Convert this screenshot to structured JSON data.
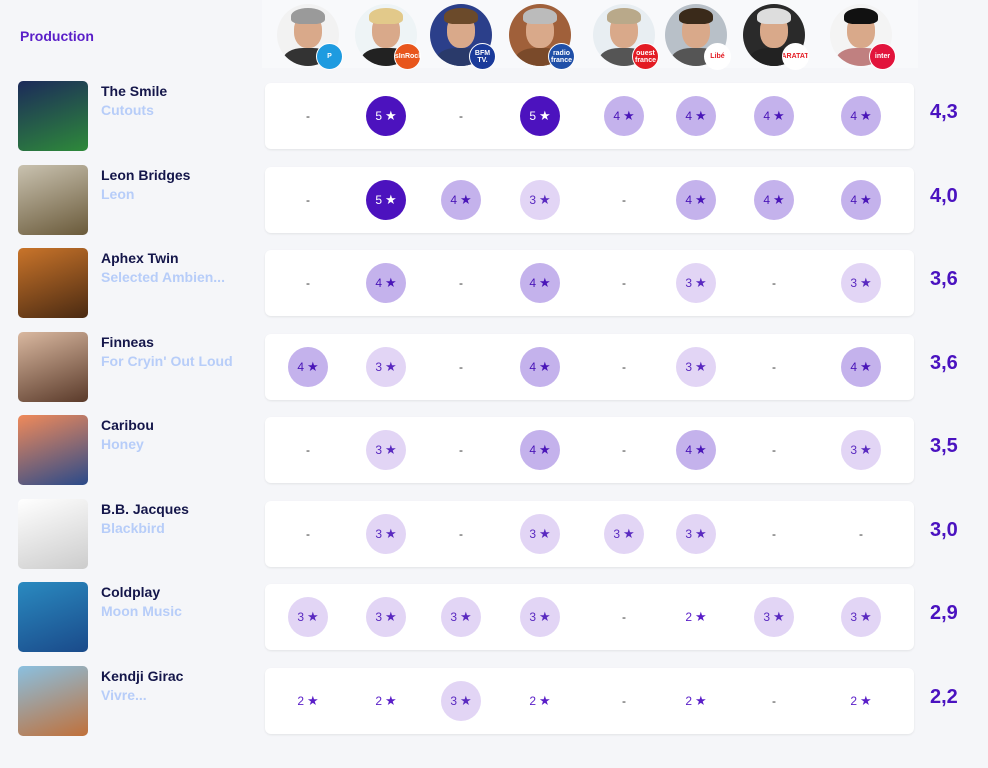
{
  "header": {
    "title": "Production"
  },
  "critics": [
    {
      "name": "critic-1",
      "badge": "P",
      "badge_color": "#1e9be0",
      "hair": "#9a9a9a",
      "body": "#333333",
      "bg": "#f2f2f2"
    },
    {
      "name": "critic-2",
      "badge": "lesInRocks",
      "badge_color": "#e8561c",
      "hair": "#e2c98a",
      "body": "#222222",
      "bg": "#eef4f6"
    },
    {
      "name": "critic-3",
      "badge": "BFM TV.",
      "badge_color": "#1a3a9a",
      "hair": "#6b4a2a",
      "body": "#2a3a6a",
      "bg": "#2b3f8a"
    },
    {
      "name": "critic-4",
      "badge": "radio france",
      "badge_color": "#1f4fa8",
      "hair": "#bbbbbb",
      "body": "#7a4a2a",
      "bg": "#a0603a"
    },
    {
      "name": "critic-5",
      "badge": "ouest france",
      "badge_color": "#e31b23",
      "hair": "#b9a98a",
      "body": "#555555",
      "bg": "#e8eef2"
    },
    {
      "name": "critic-6",
      "badge": "Libé",
      "badge_color": "#ffffff",
      "hair": "#3a2a1a",
      "body": "#555555",
      "bg": "#b8c0c8"
    },
    {
      "name": "critic-7",
      "badge": "TARATATA",
      "badge_color": "#ffffff",
      "hair": "#dddddd",
      "body": "#222222",
      "bg": "#2a2a2a"
    },
    {
      "name": "critic-8",
      "badge": "inter",
      "badge_color": "#e2143c",
      "hair": "#111111",
      "body": "#c08080",
      "bg": "#f4f4f4"
    }
  ],
  "rows": [
    {
      "artist": "The Smile",
      "album": "Cutouts",
      "ratings": [
        "-",
        "5",
        "-",
        "5",
        "4",
        "4",
        "4",
        "4"
      ],
      "score": "4,3",
      "cover": [
        "#1c2a5a",
        "#2e8a3a"
      ]
    },
    {
      "artist": "Leon Bridges",
      "album": "Leon",
      "ratings": [
        "-",
        "5",
        "4",
        "3",
        "-",
        "4",
        "4",
        "4"
      ],
      "score": "4,0",
      "cover": [
        "#c9c2b0",
        "#6a5a3a"
      ]
    },
    {
      "artist": "Aphex Twin",
      "album": "Selected Ambien...",
      "ratings": [
        "-",
        "4",
        "-",
        "4",
        "-",
        "3",
        "-",
        "3"
      ],
      "score": "3,6",
      "cover": [
        "#c9742a",
        "#4a2a12"
      ]
    },
    {
      "artist": "Finneas",
      "album": "For Cryin' Out Loud",
      "ratings": [
        "4",
        "3",
        "-",
        "4",
        "-",
        "3",
        "-",
        "4"
      ],
      "score": "3,6",
      "cover": [
        "#d9b8a0",
        "#5a3a2a"
      ]
    },
    {
      "artist": "Caribou",
      "album": "Honey",
      "ratings": [
        "-",
        "3",
        "-",
        "4",
        "-",
        "4",
        "-",
        "3"
      ],
      "score": "3,5",
      "cover": [
        "#f08a5a",
        "#2a4a8a"
      ]
    },
    {
      "artist": "B.B. Jacques",
      "album": "Blackbird",
      "ratings": [
        "-",
        "3",
        "-",
        "3",
        "3",
        "3",
        "-",
        "-"
      ],
      "score": "3,0",
      "cover": [
        "#ffffff",
        "#cccccc"
      ]
    },
    {
      "artist": "Coldplay",
      "album": "Moon Music",
      "ratings": [
        "3",
        "3",
        "3",
        "3",
        "-",
        "2",
        "3",
        "3"
      ],
      "score": "2,9",
      "cover": [
        "#2a8ac0",
        "#1a4a8a"
      ]
    },
    {
      "artist": "Kendji Girac",
      "album": "Vivre...",
      "ratings": [
        "2",
        "2",
        "3",
        "2",
        "-",
        "2",
        "-",
        "2"
      ],
      "score": "2,2",
      "cover": [
        "#8ac0e0",
        "#c0703a"
      ]
    }
  ],
  "star_glyph": "★"
}
